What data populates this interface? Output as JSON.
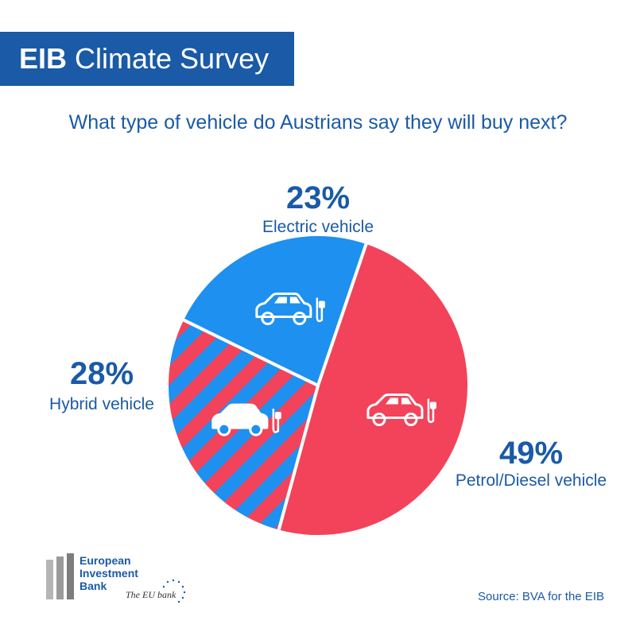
{
  "header": {
    "brand": "EIB",
    "title": "Climate Survey"
  },
  "question": "What type of vehicle do Austrians say they will buy next?",
  "chart_data": {
    "type": "pie",
    "title": "What type of vehicle do Austrians say they will buy next?",
    "slices": [
      {
        "label": "Electric vehicle",
        "value": 23,
        "value_label": "23%",
        "color": "#1e90f0",
        "pattern": "solid",
        "icon": "car-plug-icon"
      },
      {
        "label": "Petrol/Diesel vehicle",
        "value": 49,
        "value_label": "49%",
        "color": "#f2435a",
        "pattern": "solid",
        "icon": "car-fuel-icon"
      },
      {
        "label": "Hybrid vehicle",
        "value": 28,
        "value_label": "28%",
        "color": "#1e90f0",
        "stripe_color": "#f2435a",
        "pattern": "diagonal-stripes",
        "icon": "car-plug-fuel-icon"
      }
    ],
    "legend": "none",
    "label_color": "#1a5aa6"
  },
  "logo": {
    "line1": "European",
    "line2": "Investment",
    "line3": "Bank",
    "tagline": "The EU bank"
  },
  "source": "Source: BVA for the EIB",
  "colors": {
    "brand_blue": "#1a5aa6",
    "electric_blue": "#1e90f0",
    "petrol_red": "#f2435a"
  }
}
